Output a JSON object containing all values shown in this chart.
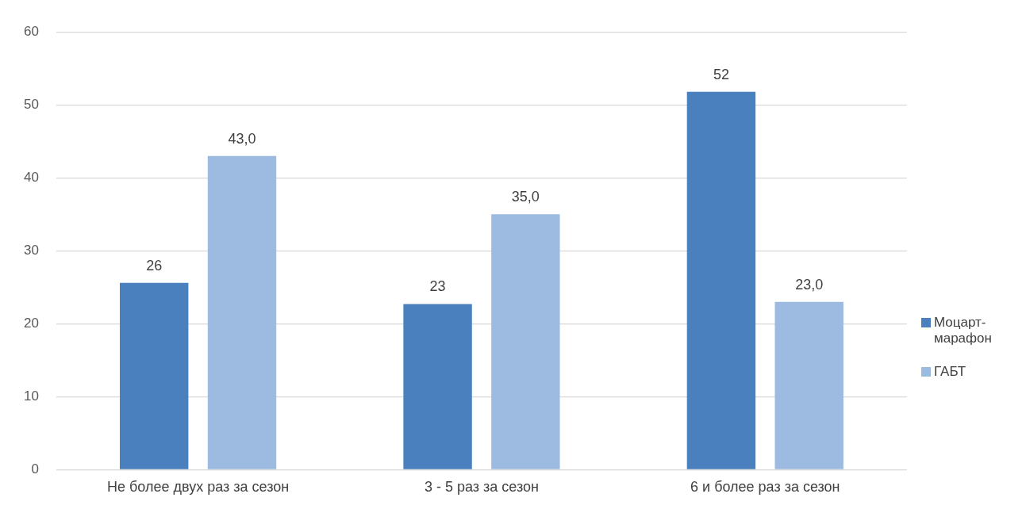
{
  "chart_data": {
    "type": "bar",
    "categories": [
      "Не более двух раз за сезон",
      "3 - 5 раз за сезон",
      "6 и более раз за сезон"
    ],
    "series": [
      {
        "name": "Моцарт-марафон",
        "color": "#4a80bd",
        "values": [
          25.6,
          22.7,
          51.8
        ],
        "value_labels": [
          "26",
          "23",
          "52"
        ]
      },
      {
        "name": "ГАБТ",
        "color": "#9dbbe1",
        "values": [
          43,
          35,
          23
        ],
        "value_labels": [
          "43,0",
          "35,0",
          "23,0"
        ]
      }
    ],
    "ylim": [
      0,
      60
    ],
    "yticks": [
      0,
      10,
      20,
      30,
      40,
      50,
      60
    ],
    "grid": "y",
    "legend": "right"
  }
}
